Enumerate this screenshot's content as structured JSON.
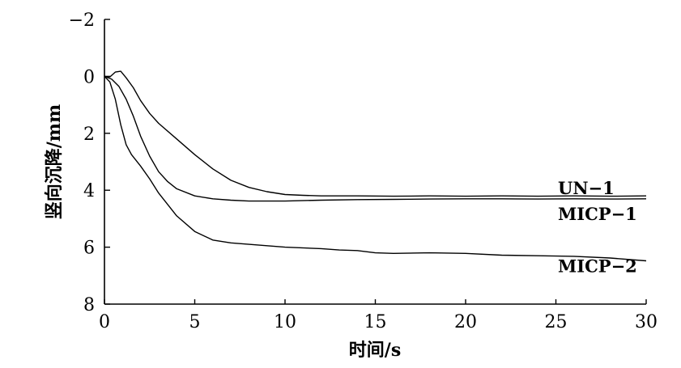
{
  "chart_data": {
    "type": "line",
    "xlabel": "时间/s",
    "ylabel": "竖向沉降/mm",
    "xlim": [
      0,
      30
    ],
    "ylim": [
      -2,
      8
    ],
    "y_inverted": true,
    "xticks": [
      "0",
      "5",
      "10",
      "15",
      "20",
      "25",
      "30"
    ],
    "yticks": [
      "−2",
      "0",
      "2",
      "4",
      "6",
      "8"
    ],
    "grid": false,
    "series": [
      {
        "name": "UN−1",
        "x": [
          0,
          0.3,
          0.6,
          0.9,
          1.2,
          1.6,
          2.0,
          2.5,
          3.0,
          4.0,
          5.0,
          6.0,
          7.0,
          8.0,
          9.0,
          10.0,
          11.0,
          12.0,
          14.0,
          16.0,
          18.0,
          20.0,
          22.0,
          24.0,
          26.0,
          28.0,
          30.0
        ],
        "y": [
          0,
          0.02,
          -0.15,
          -0.18,
          0.05,
          0.4,
          0.85,
          1.3,
          1.65,
          2.2,
          2.75,
          3.25,
          3.65,
          3.9,
          4.05,
          4.15,
          4.18,
          4.2,
          4.2,
          4.21,
          4.2,
          4.21,
          4.2,
          4.21,
          4.2,
          4.21,
          4.2
        ]
      },
      {
        "name": "MICP−1",
        "x": [
          0,
          0.4,
          0.8,
          1.2,
          1.6,
          2.0,
          2.5,
          3.0,
          3.5,
          4.0,
          5.0,
          6.0,
          7.0,
          8.0,
          9.0,
          10.0,
          12.0,
          14.0,
          16.0,
          18.0,
          20.0,
          22.0,
          24.0,
          26.0,
          28.0,
          30.0
        ],
        "y": [
          0,
          0.1,
          0.35,
          0.8,
          1.4,
          2.1,
          2.8,
          3.35,
          3.7,
          3.95,
          4.2,
          4.3,
          4.35,
          4.38,
          4.38,
          4.38,
          4.35,
          4.33,
          4.32,
          4.31,
          4.3,
          4.3,
          4.31,
          4.3,
          4.31,
          4.3
        ]
      },
      {
        "name": "MICP−2",
        "x": [
          0,
          0.3,
          0.6,
          0.9,
          1.2,
          1.5,
          2.0,
          2.5,
          3.0,
          4.0,
          5.0,
          6.0,
          7.0,
          8.0,
          9.0,
          10.0,
          12.0,
          13.0,
          14.0,
          15.0,
          16.0,
          18.0,
          20.0,
          22.0,
          24.0,
          26.0,
          28.0,
          30.0
        ],
        "y": [
          0,
          0.2,
          0.8,
          1.7,
          2.4,
          2.75,
          3.15,
          3.6,
          4.1,
          4.9,
          5.45,
          5.75,
          5.85,
          5.9,
          5.95,
          6.0,
          6.05,
          6.1,
          6.12,
          6.2,
          6.22,
          6.2,
          6.22,
          6.28,
          6.3,
          6.32,
          6.38,
          6.48
        ]
      }
    ]
  }
}
